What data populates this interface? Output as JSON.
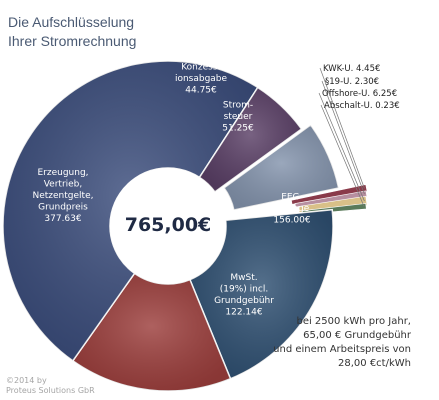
{
  "title_lines": [
    "Die Aufschlüsselung",
    "Ihrer Stromrechnung"
  ],
  "center_label": "765,00€",
  "footnote_lines": [
    "bei 2500 kWh pro Jahr,",
    "65,00 € Grundgebühr",
    "und einem Arbeitspreis von",
    "28,00 €ct/kWh"
  ],
  "copyright_lines": [
    "©2014 by",
    "Proteus Solutions GbR"
  ],
  "chart_data": {
    "type": "pie",
    "style": "donut",
    "total_label": "765,00€",
    "start_angle_deg": -36,
    "exploded_slice": "Stromsteuer",
    "slices": [
      {
        "name": "Stromsteuer",
        "label_lines": [
          "Strom-",
          "steuer",
          "51.25€"
        ],
        "value": 51.25,
        "color": "#8494ad",
        "label_color": "#ffffff"
      },
      {
        "name": "KWK-U.",
        "label_lines": [
          "KWK-U. 4.45€"
        ],
        "value": 4.45,
        "color": "#8a3a4a",
        "label_color": "#222222"
      },
      {
        "name": "§19-U.",
        "label_lines": [
          "§19-U. 2.30€"
        ],
        "value": 2.3,
        "color": "#b78fa0",
        "label_color": "#222222"
      },
      {
        "name": "Offshore-U.",
        "label_lines": [
          "Offshore-U. 6.25€"
        ],
        "value": 6.25,
        "color": "#d9c088",
        "label_color": "#222222"
      },
      {
        "name": "Abschalt-U.",
        "label_lines": [
          "Abschalt-U. 0.23€"
        ],
        "value": 0.23,
        "color": "#5a7a5a",
        "label_color": "#222222"
      },
      {
        "name": "EEG-Umlage",
        "label_lines": [
          "EEG-",
          "Umlage",
          "156.00€"
        ],
        "value": 156.0,
        "color": "#2f5072",
        "label_color": "#ffffff"
      },
      {
        "name": "MwSt. (19%) incl. Grundgebühr",
        "label_lines": [
          "MwSt.",
          "(19%) incl.",
          "Grundgebühr",
          "122.14€"
        ],
        "value": 122.14,
        "color": "#9c3e3c",
        "label_color": "#ffffff"
      },
      {
        "name": "Erzeugung, Vertrieb, Netzentgelte, Grundpreis",
        "label_lines": [
          "Erzeugung,",
          "Vertrieb,",
          "Netzentgelte,",
          "Grundpreis",
          "377.63€"
        ],
        "value": 377.63,
        "color": "#3b4d7c",
        "label_color": "#ffffff"
      },
      {
        "name": "Konzessionsabgabe",
        "label_lines": [
          "Konzess-",
          "ionsabgabe",
          "44.75€"
        ],
        "value": 44.75,
        "color": "#5a3f66",
        "label_color": "#ffffff"
      }
    ]
  }
}
